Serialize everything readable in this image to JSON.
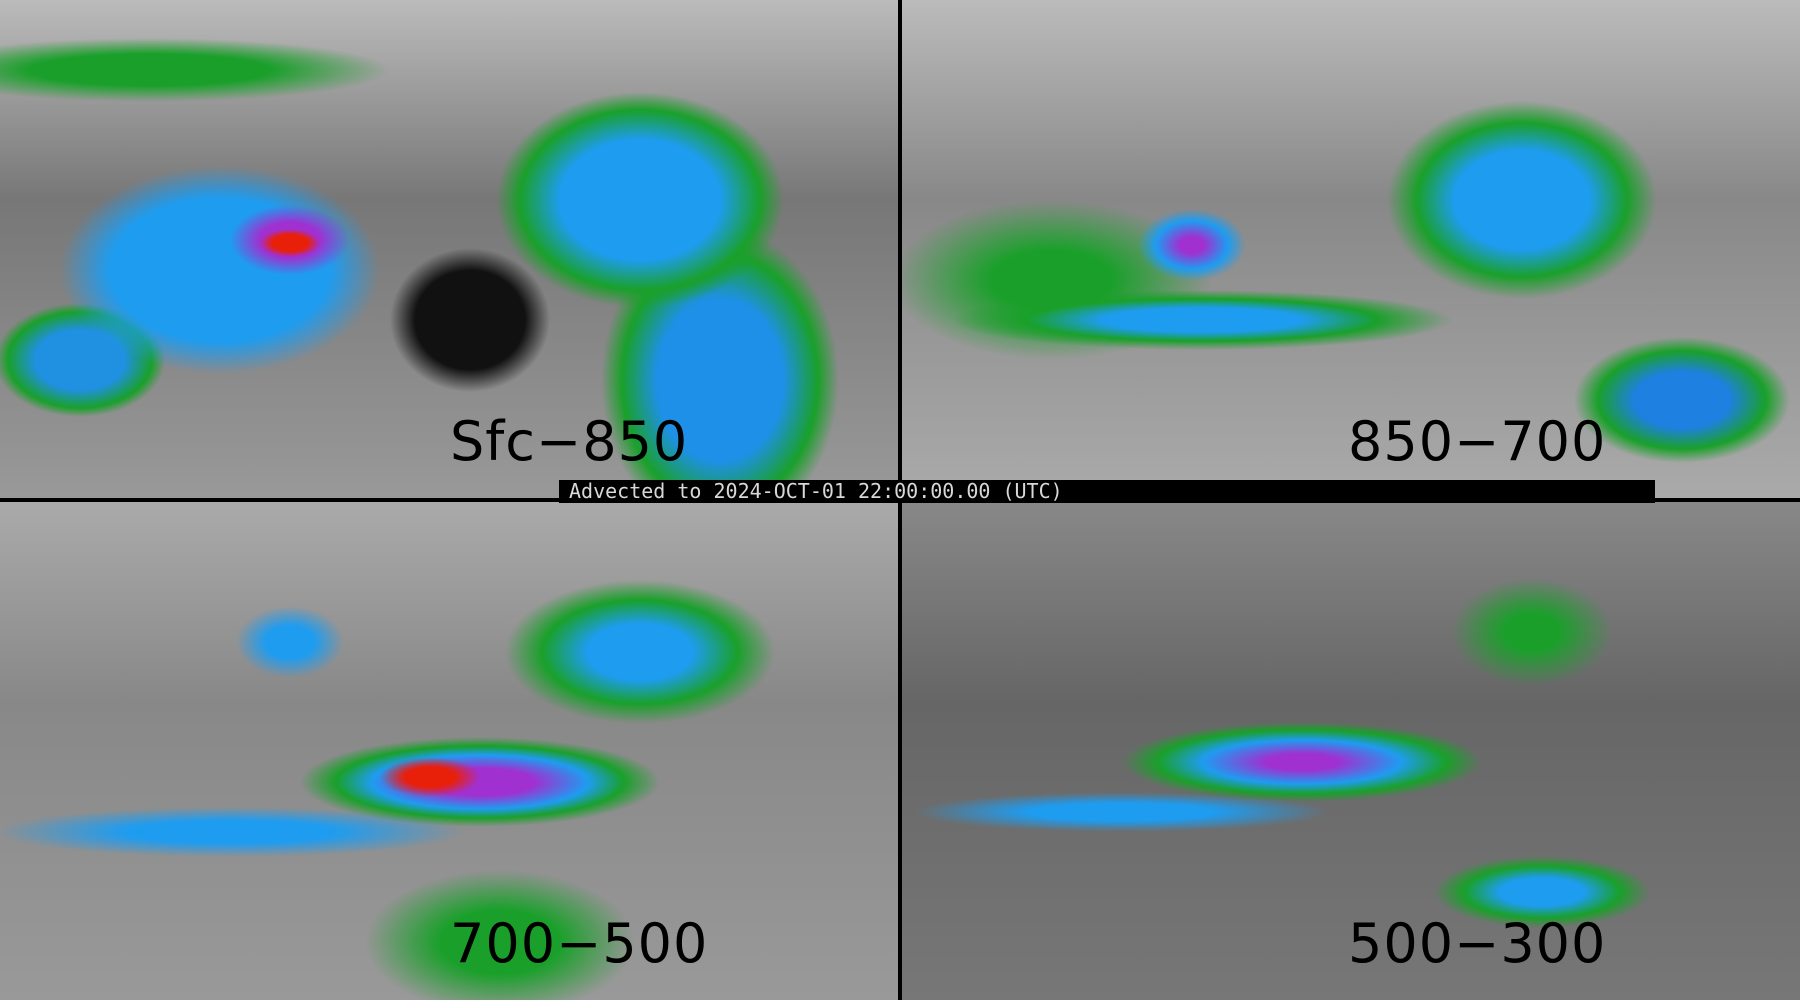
{
  "panels": [
    {
      "label": "Sfc−850"
    },
    {
      "label": "850−700"
    },
    {
      "label": "700−500"
    },
    {
      "label": "500−300"
    }
  ],
  "banner": {
    "text": "Advected to 2024-OCT-01 22:00:00.00 (UTC)"
  },
  "colors": {
    "background": "#000000",
    "green": "#1aa02a",
    "blue": "#1e9cf0",
    "purple": "#a030d0",
    "red": "#e8200a"
  }
}
